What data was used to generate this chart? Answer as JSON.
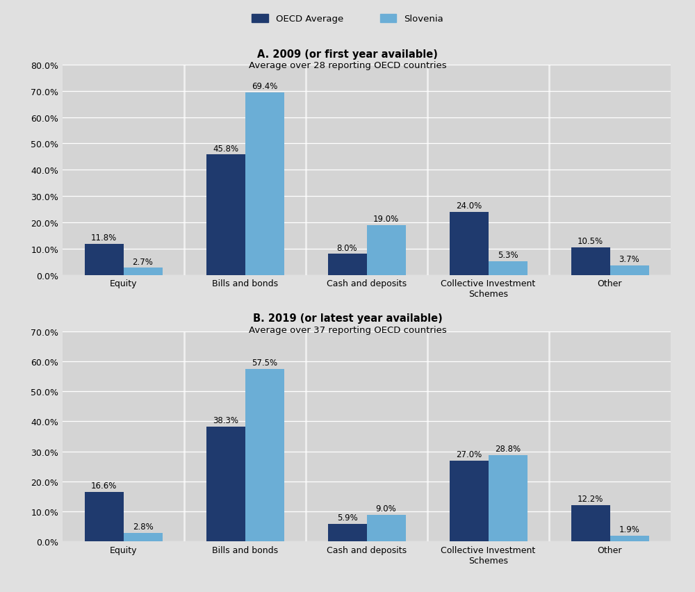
{
  "panel_a": {
    "title": "A. 2009 (or first year available)",
    "subtitle": "Average over 28 reporting OECD countries",
    "categories": [
      "Equity",
      "Bills and bonds",
      "Cash and deposits",
      "Collective Investment\nSchemes",
      "Other"
    ],
    "oecd": [
      11.8,
      45.8,
      8.0,
      24.0,
      10.5
    ],
    "slovenia": [
      2.7,
      69.4,
      19.0,
      5.3,
      3.7
    ],
    "ylim": [
      0,
      80
    ],
    "yticks": [
      0,
      10,
      20,
      30,
      40,
      50,
      60,
      70,
      80
    ],
    "ytick_labels": [
      "0.0%",
      "10.0%",
      "20.0%",
      "30.0%",
      "40.0%",
      "50.0%",
      "60.0%",
      "70.0%",
      "80.0%"
    ]
  },
  "panel_b": {
    "title": "B. 2019 (or latest year available)",
    "subtitle": "Average over 37 reporting OECD countries",
    "categories": [
      "Equity",
      "Bills and bonds",
      "Cash and deposits",
      "Collective Investment\nSchemes",
      "Other"
    ],
    "oecd": [
      16.6,
      38.3,
      5.9,
      27.0,
      12.2
    ],
    "slovenia": [
      2.8,
      57.5,
      9.0,
      28.8,
      1.9
    ],
    "ylim": [
      0,
      70
    ],
    "yticks": [
      0,
      10,
      20,
      30,
      40,
      50,
      60,
      70
    ],
    "ytick_labels": [
      "0.0%",
      "10.0%",
      "20.0%",
      "30.0%",
      "40.0%",
      "50.0%",
      "60.0%",
      "70.0%"
    ]
  },
  "oecd_color": "#1f3a6e",
  "slovenia_color": "#6baed6",
  "bar_width": 0.32,
  "plot_bg_color": "#d4d4d4",
  "fig_bg_color": "#e0e0e0",
  "separator_color": "#f0f0f0",
  "gridline_color": "#ffffff",
  "label_fontsize": 9.5,
  "title_fontsize": 10.5,
  "subtitle_fontsize": 9.5,
  "tick_fontsize": 9,
  "annotation_fontsize": 8.5
}
